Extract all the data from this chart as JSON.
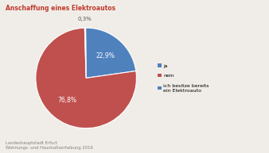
{
  "title": "Anschaffung eines Elektroautos",
  "slices": [
    22.9,
    76.8,
    0.3
  ],
  "labels": [
    "ja",
    "nein",
    "ich besitze bereits\nein Elektroauto"
  ],
  "autopct_values": [
    "22,9%",
    "76,8%",
    "0,3%"
  ],
  "slice_colors": [
    "#4f81bd",
    "#c0504d",
    "#4f81bd"
  ],
  "legend_colors": [
    "#4f81bd",
    "#c0504d",
    "#4f81bd"
  ],
  "footer": "Landeshauptstadt Erfurt\nWohnungs- und Haushaltserhebung 2016",
  "title_color": "#c0392b",
  "footer_color": "#808080",
  "background_color": "#f0ede8",
  "label_color_inside": "#ffffff",
  "label_color_outside": "#555555"
}
